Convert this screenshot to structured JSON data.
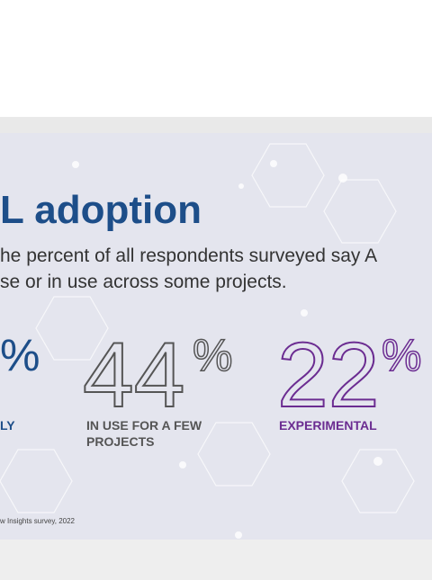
{
  "title": "L adoption",
  "subtitle": [
    "he percent of all respondents surveyed say A",
    "se or in use across some projects."
  ],
  "stats": [
    {
      "unit": "%",
      "label": [
        "LY"
      ]
    },
    {
      "value": "44",
      "unit": "%",
      "label": [
        "IN USE FOR A FEW",
        "PROJECTS"
      ]
    },
    {
      "value": "22",
      "unit": "%",
      "label": [
        "EXPERIMENTAL"
      ]
    }
  ],
  "source": "w Insights survey, 2022"
}
